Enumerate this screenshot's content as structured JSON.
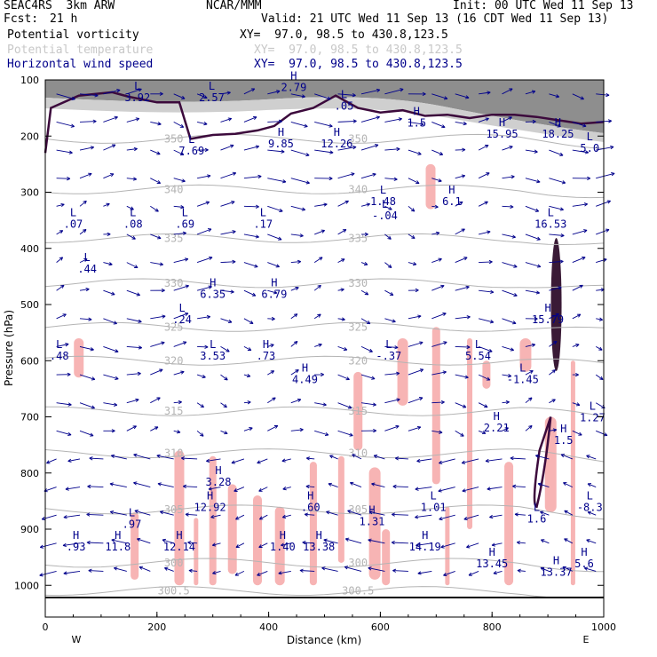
{
  "header": {
    "project": "SEAC4RS  3km ARW",
    "forecast_label": "Fcst:",
    "forecast_value": "21 h",
    "center": "NCAR/MMM",
    "init": "Init: 00 UTC Wed 11 Sep 13",
    "valid": "Valid: 21 UTC Wed 11 Sep 13 (16 CDT Wed 11 Sep 13)"
  },
  "fields": [
    {
      "name": "Potential vorticity",
      "xy": "XY=  97.0, 98.5 to 430.8,123.5",
      "color": "#000000"
    },
    {
      "name": "Potential temperature",
      "xy": "XY=  97.0, 98.5 to 430.8,123.5",
      "color": "#c8c8c8"
    },
    {
      "name": "Horizontal wind speed",
      "xy": "XY=  97.0, 98.5 to 430.8,123.5",
      "color": "#00008b"
    }
  ],
  "chart_data": {
    "type": "cross-section",
    "xlabel": "Distance (km)",
    "ylabel": "Pressure (hPa)",
    "xlim": [
      0,
      1000
    ],
    "ylim": [
      1050,
      100
    ],
    "x_ticks": [
      "0",
      "200",
      "400",
      "600",
      "800",
      "1000"
    ],
    "x_tick_values": [
      0,
      200,
      400,
      600,
      800,
      1000
    ],
    "y_ticks": [
      "100",
      "200",
      "300",
      "400",
      "500",
      "600",
      "700",
      "800",
      "900",
      "1000"
    ],
    "y_tick_values": [
      100,
      200,
      300,
      400,
      500,
      600,
      700,
      800,
      900,
      1000
    ],
    "left_end_label": "W",
    "right_end_label": "E",
    "theta_contours": [
      {
        "label": "350",
        "p": 205
      },
      {
        "label": "340",
        "p": 295
      },
      {
        "label": "335",
        "p": 382
      },
      {
        "label": "330",
        "p": 462
      },
      {
        "label": "325",
        "p": 540
      },
      {
        "label": "320",
        "p": 600
      },
      {
        "label": "315",
        "p": 690
      },
      {
        "label": "310",
        "p": 765
      },
      {
        "label": "305",
        "p": 865
      },
      {
        "label": "300",
        "p": 960
      },
      {
        "label": "300.5",
        "p": 1010
      }
    ],
    "extrema": [
      {
        "type": "L",
        "value": "3.92",
        "x": 165,
        "p": 130
      },
      {
        "type": "L",
        "value": "2.57",
        "x": 298,
        "p": 130
      },
      {
        "type": "H",
        "value": "2.79",
        "x": 445,
        "p": 112
      },
      {
        "type": "L",
        "value": ".05",
        "x": 535,
        "p": 145
      },
      {
        "type": "H",
        "value": "1.5",
        "x": 665,
        "p": 175
      },
      {
        "type": "H",
        "value": "15.95",
        "x": 818,
        "p": 195
      },
      {
        "type": "H",
        "value": "18.25",
        "x": 918,
        "p": 195
      },
      {
        "type": "L",
        "value": "5.0",
        "x": 975,
        "p": 220
      },
      {
        "type": "L",
        "value": "7.69",
        "x": 262,
        "p": 225
      },
      {
        "type": "H",
        "value": "9.85",
        "x": 422,
        "p": 212
      },
      {
        "type": "H",
        "value": "12.26",
        "x": 522,
        "p": 212
      },
      {
        "type": "L",
        "value": "1.48",
        "x": 605,
        "p": 315
      },
      {
        "type": "H",
        "value": "6.1",
        "x": 728,
        "p": 315
      },
      {
        "type": "L",
        "value": "-.04",
        "x": 608,
        "p": 340
      },
      {
        "type": "L",
        "value": ".07",
        "x": 50,
        "p": 355
      },
      {
        "type": "L",
        "value": ".08",
        "x": 157,
        "p": 355
      },
      {
        "type": "L",
        "value": ".69",
        "x": 250,
        "p": 355
      },
      {
        "type": "L",
        "value": ".17",
        "x": 390,
        "p": 355
      },
      {
        "type": "L",
        "value": "16.53",
        "x": 905,
        "p": 355
      },
      {
        "type": "L",
        "value": ".44",
        "x": 75,
        "p": 435
      },
      {
        "type": "H",
        "value": "6.35",
        "x": 300,
        "p": 480
      },
      {
        "type": "H",
        "value": "6.79",
        "x": 410,
        "p": 480
      },
      {
        "type": "L",
        "value": ".24",
        "x": 245,
        "p": 525
      },
      {
        "type": "H",
        "value": "15.79",
        "x": 900,
        "p": 525
      },
      {
        "type": "L",
        "value": ".48",
        "x": 25,
        "p": 590
      },
      {
        "type": "L",
        "value": "3.53",
        "x": 300,
        "p": 590
      },
      {
        "type": "H",
        "value": ".73",
        "x": 395,
        "p": 590
      },
      {
        "type": "L",
        "value": "-.37",
        "x": 615,
        "p": 590
      },
      {
        "type": "L",
        "value": "5.54",
        "x": 775,
        "p": 590
      },
      {
        "type": "H",
        "value": "4.49",
        "x": 465,
        "p": 632
      },
      {
        "type": "L",
        "value": "-1.45",
        "x": 855,
        "p": 632
      },
      {
        "type": "L",
        "value": "1.27",
        "x": 980,
        "p": 700
      },
      {
        "type": "H",
        "value": "2.21",
        "x": 808,
        "p": 718
      },
      {
        "type": "H",
        "value": "1.5",
        "x": 928,
        "p": 740
      },
      {
        "type": "H",
        "value": "3.28",
        "x": 310,
        "p": 815
      },
      {
        "type": "H",
        "value": "12.92",
        "x": 295,
        "p": 860
      },
      {
        "type": "H",
        "value": ".60",
        "x": 475,
        "p": 860
      },
      {
        "type": "L",
        "value": "1.01",
        "x": 695,
        "p": 860
      },
      {
        "type": "L",
        "value": "-8.3",
        "x": 975,
        "p": 860
      },
      {
        "type": "L",
        "value": ".97",
        "x": 155,
        "p": 890
      },
      {
        "type": "H",
        "value": "1.31",
        "x": 585,
        "p": 885
      },
      {
        "type": "L",
        "value": "1.6",
        "x": 880,
        "p": 880
      },
      {
        "type": "H",
        "value": ".93",
        "x": 55,
        "p": 930
      },
      {
        "type": "H",
        "value": "11.8",
        "x": 130,
        "p": 930
      },
      {
        "type": "H",
        "value": "12.14",
        "x": 240,
        "p": 930
      },
      {
        "type": "H",
        "value": "1.40",
        "x": 425,
        "p": 930
      },
      {
        "type": "H",
        "value": "13.38",
        "x": 490,
        "p": 930
      },
      {
        "type": "H",
        "value": "14.19",
        "x": 680,
        "p": 930
      },
      {
        "type": "H",
        "value": "13.45",
        "x": 800,
        "p": 960
      },
      {
        "type": "H",
        "value": "13.37",
        "x": 915,
        "p": 975
      },
      {
        "type": "H",
        "value": "5.6",
        "x": 965,
        "p": 960
      }
    ]
  }
}
